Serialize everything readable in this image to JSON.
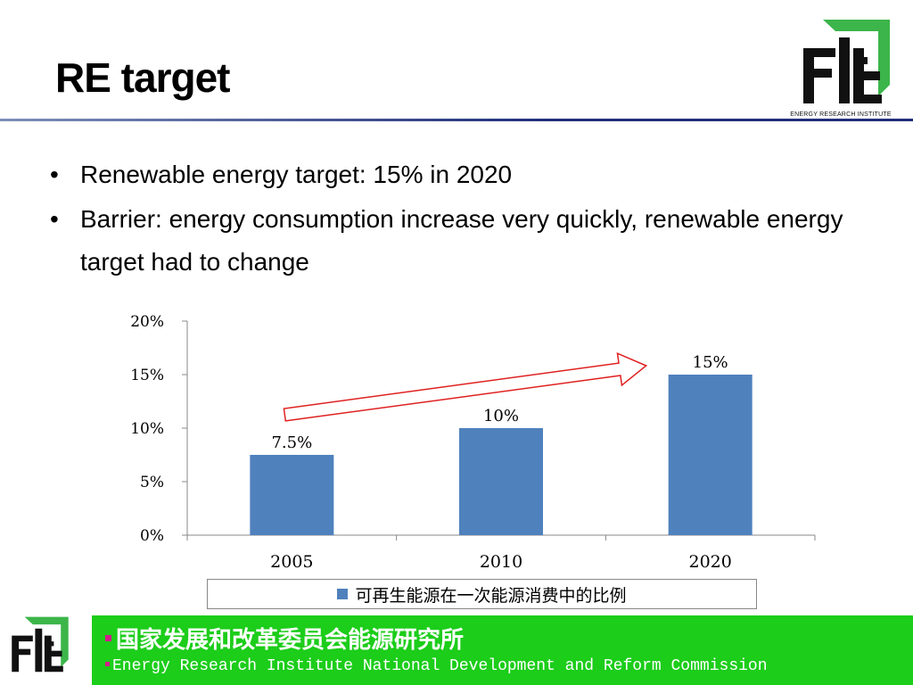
{
  "slide": {
    "title": "RE target",
    "logo_caption": "ENERGY RESEARCH INSTITUTE"
  },
  "bullets": [
    "Renewable energy target: 15% in 2020",
    "Barrier:  energy consumption increase very quickly, renewable energy target had to change"
  ],
  "chart_data": {
    "type": "bar",
    "categories": [
      "2005",
      "2010",
      "2020"
    ],
    "series": [
      {
        "name": "可再生能源在一次能源消费中的比例",
        "values": [
          7.5,
          10,
          15
        ],
        "color": "#4f81bd"
      }
    ],
    "data_labels": [
      "7.5%",
      "10%",
      "15%"
    ],
    "y_ticks": [
      "0%",
      "5%",
      "10%",
      "15%",
      "20%"
    ],
    "ylim": [
      0,
      20
    ],
    "grid": false,
    "legend_position": "bottom",
    "annotation": "upward-arrow-from-2005-to-2020"
  },
  "footer": {
    "cn": "国家发展和改革委员会能源研究所",
    "en": "Energy Research Institute National Development and Reform Commission",
    "band_color": "#1ccd1a",
    "bullet_color": "#d31b8a"
  }
}
